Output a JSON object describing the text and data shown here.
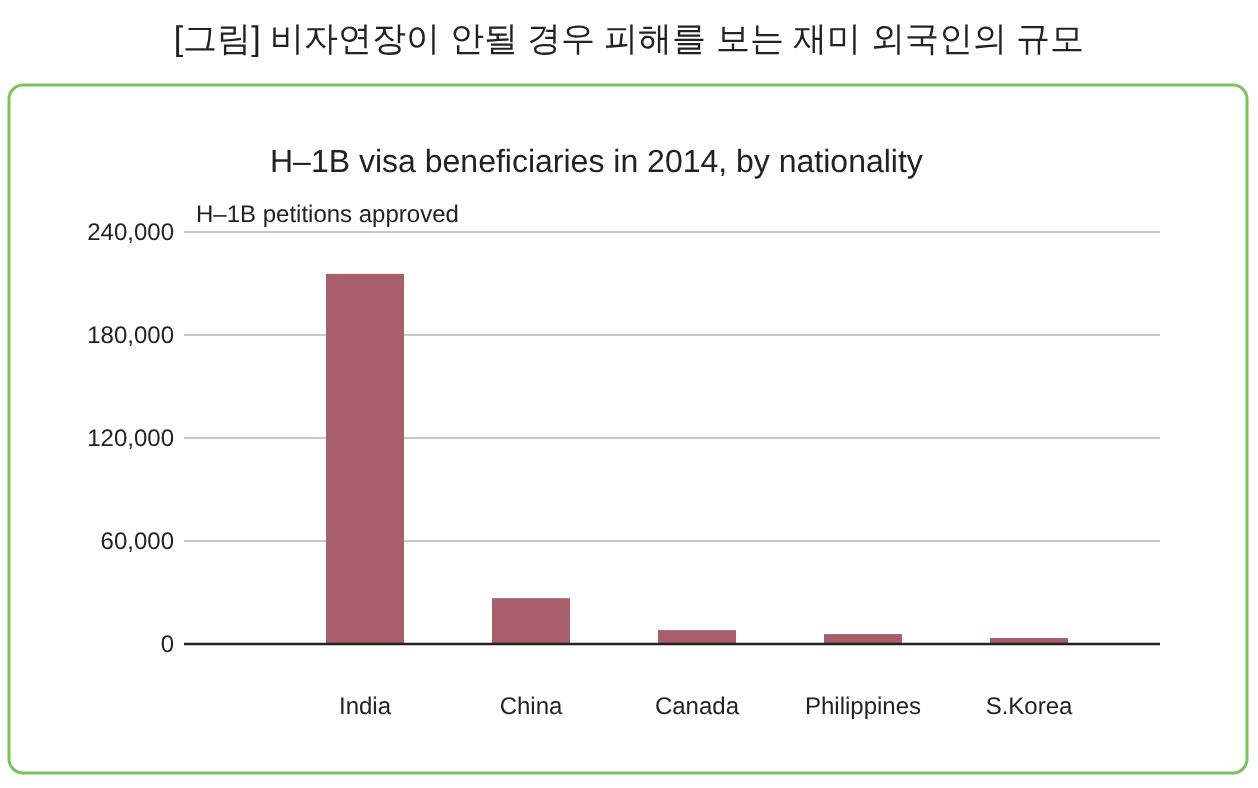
{
  "chart_data": {
    "type": "bar",
    "title": "[그림] 비자연장이 안될 경우 피해를 보는 재미 외국인의 규모",
    "subtitle": "H–1B visa beneficiaries in 2014, by nationality",
    "ylabel": "H–1B petitions approved",
    "categories": [
      "India",
      "China",
      "Canada",
      "Philippines",
      "S.Korea"
    ],
    "values": [
      215600,
      26700,
      8100,
      5800,
      3500
    ],
    "color": "#a95f6a",
    "ylim": [
      0,
      240000
    ],
    "yticks": [
      0,
      {
        "value": 60000,
        "label": "60,000"
      },
      {
        "value": 120000,
        "label": "120,000"
      },
      {
        "value": 180000,
        "label": "180,000"
      },
      {
        "value": 240000,
        "label": "240,000"
      }
    ],
    "grid": "y"
  }
}
